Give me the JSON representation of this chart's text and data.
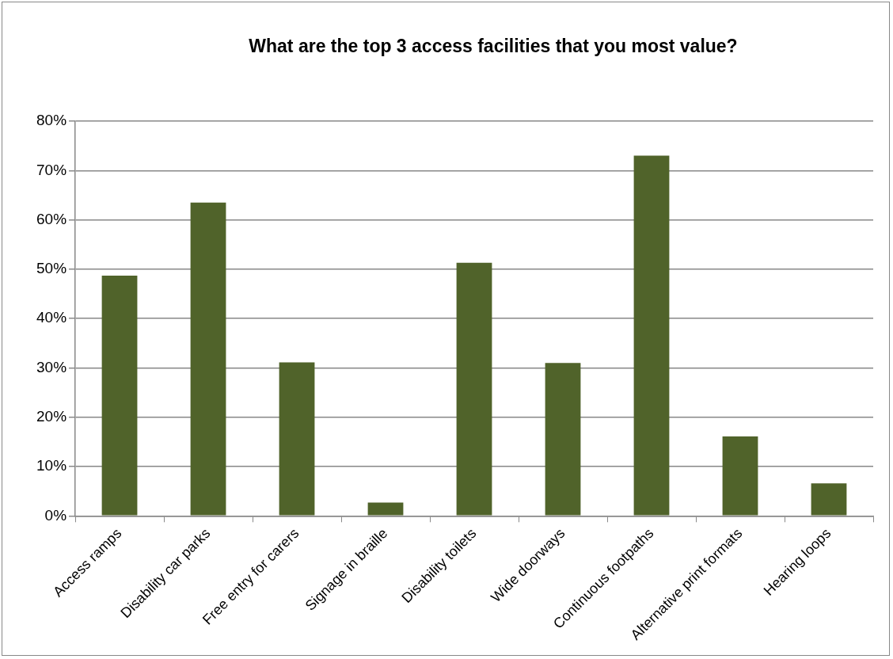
{
  "chart_data": {
    "type": "bar",
    "title": "What are the top 3 access facilities that you most value?",
    "categories": [
      "Access ramps",
      "Disability car parks",
      "Free entry for carers",
      "Signage in braille",
      "Disability toilets",
      "Wide doorways",
      "Continuous footpaths",
      "Alternative print formats",
      "Hearing loops"
    ],
    "values": [
      48.7,
      63.5,
      31.1,
      2.7,
      51.3,
      31.0,
      73.0,
      16.1,
      6.6
    ],
    "color": "#50632a",
    "ylim": [
      0,
      80
    ],
    "yticks": [
      {
        "value": 0,
        "label": "0%"
      },
      {
        "value": 10,
        "label": "10%"
      },
      {
        "value": 20,
        "label": "20%"
      },
      {
        "value": 30,
        "label": "30%"
      },
      {
        "value": 40,
        "label": "40%"
      },
      {
        "value": 50,
        "label": "50%"
      },
      {
        "value": 60,
        "label": "60%"
      },
      {
        "value": 70,
        "label": "70%"
      },
      {
        "value": 80,
        "label": "80%"
      }
    ],
    "grid": "y",
    "legend": false
  }
}
